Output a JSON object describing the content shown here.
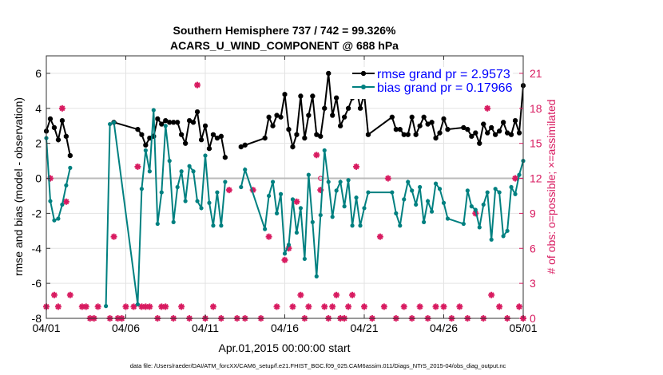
{
  "chart_data": {
    "type": "line",
    "title": "Southern Hemisphere 737 / 742 = 99.326%",
    "subtitle": "ACARS_U_WIND_COMPONENT @ 688 hPa",
    "xlabel": "Apr.01,2015 00:00:00 start",
    "ylabel": "rmse and bias (model - observation)",
    "y2label": "# of obs: o=possible; ×=assimilated",
    "footnote": "data file: /Users/raeder/DAI/ATM_forcXX/CAM6_setup/f.e21.FHIST_BGC.f09_025.CAM6assim.011/Diags_NTrS_2015-04/obs_diag_output.nc",
    "xlim": [
      0,
      30
    ],
    "ylim": [
      -8,
      7
    ],
    "y2lim": [
      0,
      22.5
    ],
    "x_ticks": [
      0,
      5,
      10,
      15,
      20,
      25,
      30
    ],
    "x_tick_labels": [
      "04/01",
      "04/06",
      "04/11",
      "04/16",
      "04/21",
      "04/26",
      "05/01"
    ],
    "y_ticks": [
      -8,
      -6,
      -4,
      -2,
      0,
      2,
      4,
      6
    ],
    "y_tick_labels": [
      "-8",
      "-6",
      "-4",
      "-2",
      "0",
      "2",
      "4",
      "6"
    ],
    "y2_ticks": [
      0,
      3,
      6,
      9,
      12,
      15,
      18,
      21
    ],
    "y2_tick_labels": [
      "0",
      "3",
      "6",
      "9",
      "12",
      "15",
      "18",
      "21"
    ],
    "grid": true,
    "legend_position": "top-right",
    "colors": {
      "rmse": "#000000",
      "bias": "#008080",
      "obs": "#d81b60",
      "zero_line": "#bbbbbb",
      "legend_text": "#0000ff"
    },
    "series": [
      {
        "name": "rmse grand pr = 2.9573",
        "axis": "left",
        "x": [
          0.0,
          0.25,
          0.5,
          0.75,
          1.0,
          1.25,
          1.5,
          1.75,
          2.0,
          2.25,
          2.5,
          2.75,
          3.75,
          4.0,
          4.25,
          5.75,
          6.0,
          6.25,
          6.5,
          6.75,
          7.0,
          7.25,
          7.5,
          7.75,
          8.0,
          8.25,
          8.5,
          8.75,
          9.0,
          9.25,
          9.5,
          9.75,
          10.0,
          10.25,
          10.5,
          10.75,
          11.0,
          11.25,
          11.5,
          12.25,
          12.5,
          13.75,
          14.0,
          14.25,
          14.5,
          14.75,
          15.0,
          15.25,
          15.5,
          15.75,
          16.0,
          16.25,
          16.5,
          16.75,
          17.0,
          17.25,
          17.5,
          17.75,
          18.0,
          18.25,
          18.5,
          18.75,
          19.0,
          19.25,
          19.5,
          19.75,
          20.0,
          20.25,
          21.75,
          22.0,
          22.25,
          22.5,
          22.75,
          23.0,
          23.25,
          23.5,
          23.75,
          24.0,
          24.25,
          24.5,
          24.75,
          25.0,
          25.25,
          26.25,
          26.5,
          26.75,
          27.0,
          27.25,
          27.5,
          27.75,
          28.0,
          28.25,
          28.5,
          28.75,
          29.0,
          29.25,
          29.5,
          29.75,
          30.0
        ],
        "values": [
          2.7,
          3.4,
          2.9,
          2.2,
          3.3,
          2.4,
          1.3,
          null,
          null,
          null,
          null,
          null,
          null,
          null,
          3.2,
          2.8,
          2.5,
          1.9,
          2.3,
          2.4,
          3.4,
          3.1,
          3.3,
          3.2,
          3.2,
          3.2,
          2.5,
          2.0,
          3.3,
          3.2,
          3.8,
          2.2,
          3.0,
          1.7,
          2.5,
          2.3,
          2.4,
          1.2,
          null,
          1.8,
          1.9,
          2.3,
          3.5,
          3.0,
          3.6,
          3.5,
          4.8,
          2.8,
          1.8,
          2.5,
          4.7,
          2.3,
          3.6,
          4.7,
          2.5,
          2.4,
          4.0,
          6.0,
          3.6,
          4.6,
          3.0,
          3.5,
          4.0,
          4.6,
          5.2,
          4.0,
          4.8,
          2.5,
          3.5,
          2.8,
          2.8,
          2.5,
          2.5,
          3.5,
          2.5,
          3.0,
          3.5,
          3.1,
          3.2,
          2.3,
          2.6,
          3.4,
          2.8,
          2.9,
          2.8,
          2.4,
          2.6,
          2.0,
          3.1,
          2.6,
          2.9,
          2.5,
          2.7,
          3.2,
          2.6,
          2.5,
          3.3,
          2.6,
          5.3
        ]
      },
      {
        "name": "bias grand pr = 0.17966",
        "axis": "left",
        "x": [
          0.0,
          0.25,
          0.5,
          0.75,
          1.0,
          1.25,
          1.5,
          1.75,
          2.0,
          2.25,
          2.5,
          2.75,
          3.75,
          4.0,
          4.25,
          5.75,
          6.0,
          6.25,
          6.5,
          6.75,
          7.0,
          7.25,
          7.5,
          7.75,
          8.0,
          8.25,
          8.5,
          8.75,
          9.0,
          9.25,
          9.5,
          9.75,
          10.0,
          10.25,
          10.5,
          10.75,
          11.0,
          11.25,
          11.5,
          12.25,
          12.5,
          13.75,
          14.0,
          14.25,
          14.5,
          14.75,
          15.0,
          15.25,
          15.5,
          15.75,
          16.0,
          16.25,
          16.5,
          16.75,
          17.0,
          17.25,
          17.5,
          17.75,
          18.0,
          18.25,
          18.5,
          18.75,
          19.0,
          19.25,
          19.5,
          19.75,
          20.0,
          20.25,
          21.75,
          22.0,
          22.25,
          22.5,
          22.75,
          23.0,
          23.25,
          23.5,
          23.75,
          24.0,
          24.25,
          24.5,
          24.75,
          25.0,
          25.25,
          26.25,
          26.5,
          26.75,
          27.0,
          27.25,
          27.5,
          27.75,
          28.0,
          28.25,
          28.5,
          28.75,
          29.0,
          29.25,
          29.5,
          29.75,
          30.0
        ],
        "values": [
          2.3,
          -1.3,
          -2.4,
          -2.3,
          -1.5,
          -0.4,
          0.6,
          null,
          null,
          null,
          null,
          null,
          -7.3,
          3.1,
          3.2,
          -7.2,
          -0.6,
          1.6,
          0.4,
          3.9,
          -2.6,
          -0.8,
          3.0,
          1.0,
          -2.5,
          -0.5,
          0.4,
          -1.3,
          0.7,
          0.4,
          -1.3,
          -1.7,
          1.3,
          -1.4,
          -2.7,
          -0.8,
          -2.7,
          -0.2,
          null,
          -0.5,
          0.5,
          -2.9,
          -1.0,
          -0.2,
          -2.0,
          -0.9,
          -4.3,
          -3.8,
          -1.2,
          -3.1,
          -1.7,
          -4.6,
          0.2,
          -2.5,
          -5.6,
          -2.1,
          1.6,
          -0.2,
          -2.2,
          -0.7,
          -0.2,
          -1.6,
          -0.1,
          -2.7,
          -1.1,
          -2.7,
          -1.7,
          -0.8,
          -0.8,
          -2.0,
          -2.7,
          -1.2,
          -0.2,
          -0.7,
          -1.5,
          -0.5,
          -2.5,
          -1.3,
          -1.9,
          -0.3,
          -0.6,
          -1.4,
          -2.3,
          -2.6,
          -0.7,
          -1.6,
          -1.8,
          -2.8,
          -1.5,
          -0.8,
          -3.5,
          -0.6,
          -0.8,
          -3.3,
          -3.0,
          -0.5,
          -0.9,
          0.2,
          1.0
        ]
      }
    ],
    "obs_possible": {
      "axis": "right",
      "x": [
        0.0,
        0.25,
        0.5,
        0.75,
        1.0,
        1.25,
        1.5,
        2.25,
        2.5,
        2.75,
        3.0,
        3.25,
        4.0,
        4.25,
        4.5,
        4.75,
        5.0,
        5.5,
        5.75,
        6.0,
        6.25,
        6.5,
        7.0,
        7.25,
        7.5,
        8.0,
        8.5,
        9.0,
        9.5,
        10.0,
        10.5,
        11.0,
        11.5,
        12.0,
        12.5,
        13.0,
        13.5,
        14.0,
        14.5,
        15.0,
        15.25,
        15.5,
        15.75,
        16.0,
        16.25,
        16.5,
        17.0,
        17.25,
        17.5,
        17.75,
        18.0,
        18.25,
        18.5,
        18.75,
        19.0,
        19.25,
        19.5,
        20.0,
        20.5,
        21.0,
        21.25,
        21.5,
        22.0,
        22.5,
        23.0,
        23.5,
        24.0,
        24.5,
        25.0,
        25.5,
        26.0,
        26.5,
        27.0,
        27.5,
        27.75,
        28.0,
        28.5,
        29.0,
        29.5,
        29.75,
        30.0
      ],
      "values": [
        1,
        12,
        2,
        1,
        18,
        10,
        2,
        1,
        1,
        0,
        0,
        1,
        0,
        7,
        0,
        0,
        1,
        1,
        13,
        1,
        1,
        1,
        0,
        1,
        1,
        0,
        1,
        0,
        20,
        0,
        1,
        0,
        11,
        0,
        0,
        11,
        0,
        7,
        1,
        5,
        6,
        1,
        10,
        2,
        0,
        1,
        14,
        12,
        1,
        0,
        1,
        2,
        0,
        0,
        1,
        2,
        13,
        1,
        0,
        7,
        1,
        12,
        0,
        1,
        0,
        1,
        0,
        1,
        1,
        0,
        1,
        0,
        9,
        0,
        18,
        2,
        1,
        0,
        12,
        1,
        0
      ]
    },
    "obs_assimilated": {
      "axis": "right",
      "x": [
        0.0,
        0.25,
        0.5,
        0.75,
        1.0,
        1.25,
        1.5,
        2.25,
        2.5,
        2.75,
        3.0,
        3.25,
        4.0,
        4.25,
        4.5,
        4.75,
        5.0,
        5.5,
        5.75,
        6.0,
        6.25,
        6.5,
        7.0,
        7.25,
        7.5,
        8.0,
        8.5,
        9.0,
        9.5,
        10.0,
        10.5,
        11.0,
        11.5,
        12.0,
        12.5,
        13.0,
        13.5,
        14.0,
        14.5,
        15.0,
        15.25,
        15.5,
        15.75,
        16.0,
        16.25,
        16.5,
        17.0,
        17.25,
        17.5,
        17.75,
        18.0,
        18.25,
        18.5,
        18.75,
        19.0,
        19.25,
        19.5,
        20.0,
        20.5,
        21.0,
        21.25,
        21.5,
        22.0,
        22.5,
        23.0,
        23.5,
        24.0,
        24.5,
        25.0,
        25.5,
        26.0,
        26.5,
        27.0,
        27.5,
        27.75,
        28.0,
        28.5,
        29.0,
        29.5,
        29.75,
        30.0
      ],
      "values": [
        1,
        12,
        2,
        1,
        18,
        10,
        2,
        1,
        1,
        0,
        0,
        1,
        0,
        7,
        0,
        0,
        1,
        1,
        13,
        1,
        1,
        1,
        0,
        1,
        1,
        0,
        1,
        0,
        20,
        0,
        1,
        0,
        11,
        0,
        0,
        11,
        0,
        7,
        1,
        5,
        6,
        1,
        10,
        2,
        0,
        1,
        14,
        11,
        1,
        0,
        1,
        2,
        0,
        0,
        1,
        2,
        13,
        1,
        0,
        7,
        1,
        12,
        0,
        1,
        0,
        1,
        0,
        1,
        1,
        0,
        1,
        0,
        9,
        0,
        18,
        2,
        1,
        0,
        12,
        1,
        0
      ]
    }
  }
}
